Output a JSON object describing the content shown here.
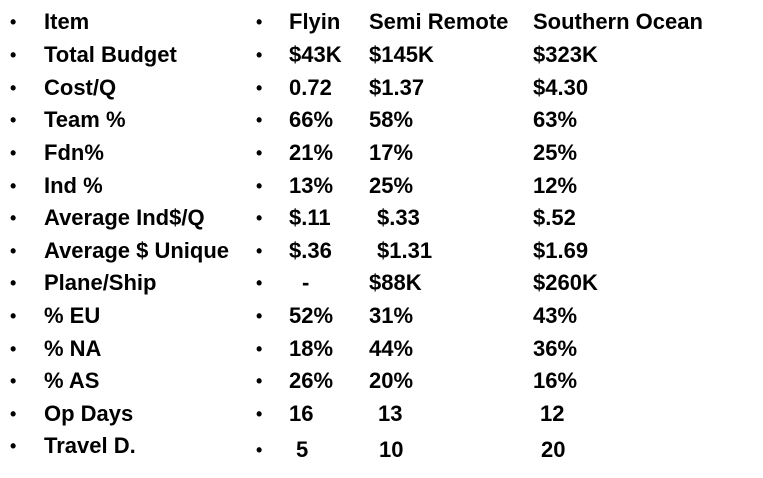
{
  "bullet_char": "•",
  "rows": [
    {
      "item": "Item",
      "flyin": "Flyin",
      "semi": "Semi Remote",
      "south": "Southern Ocean"
    },
    {
      "item": "Total Budget",
      "flyin": "$43K",
      "semi": "$145K",
      "south": "$323K"
    },
    {
      "item": "Cost/Q",
      "flyin": "0.72",
      "semi": "$1.37",
      "south": "$4.30"
    },
    {
      "item": "Team %",
      "flyin": "66%",
      "semi": "58%",
      "south": "63%"
    },
    {
      "item": "Fdn%",
      "flyin": "21%",
      "semi": "17%",
      "south": "25%"
    },
    {
      "item": "Ind %",
      "flyin": "13%",
      "semi": "25%",
      "south": "12%"
    },
    {
      "item": "Average Ind$/Q",
      "flyin": "$.11",
      "semi": "$.33",
      "south": "$.52"
    },
    {
      "item": "Average $ Unique",
      "flyin": "$.36",
      "semi": "$1.31",
      "south": "$1.69"
    },
    {
      "item": "Plane/Ship",
      "flyin": "-",
      "semi": "$88K",
      "south": "$260K"
    },
    {
      "item": "% EU",
      "flyin": "52%",
      "semi": "31%",
      "south": "43%"
    },
    {
      "item": "% NA",
      "flyin": "18%",
      "semi": "44%",
      "south": "36%"
    },
    {
      "item": "% AS",
      "flyin": "26%",
      "semi": "20%",
      "south": "16%"
    },
    {
      "item": "Op Days",
      "flyin": "16",
      "semi": "13",
      "south": "12"
    },
    {
      "item": "Travel D.",
      "flyin": "5",
      "semi": "10",
      "south": "20"
    }
  ]
}
